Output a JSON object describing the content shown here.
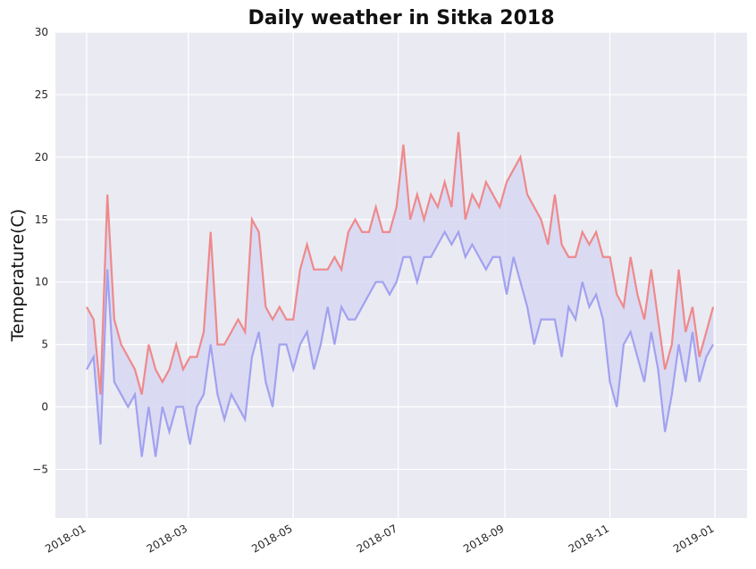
{
  "chart_data": {
    "type": "line",
    "title": "Daily weather in Sitka 2018",
    "ylabel": "Temperature(C)",
    "x": [
      0,
      4,
      8,
      12,
      16,
      20,
      24,
      28,
      32,
      36,
      40,
      44,
      48,
      52,
      56,
      60,
      64,
      68,
      72,
      76,
      80,
      84,
      88,
      92,
      96,
      100,
      104,
      108,
      112,
      116,
      120,
      124,
      128,
      132,
      136,
      140,
      144,
      148,
      152,
      156,
      160,
      164,
      168,
      172,
      176,
      180,
      184,
      188,
      192,
      196,
      200,
      204,
      208,
      212,
      216,
      220,
      224,
      228,
      232,
      236,
      240,
      244,
      248,
      252,
      256,
      260,
      264,
      268,
      272,
      276,
      280,
      284,
      288,
      292,
      296,
      300,
      304,
      308,
      312,
      316,
      320,
      324,
      328,
      332,
      336,
      340,
      344,
      348,
      352,
      356,
      360,
      364
    ],
    "series": [
      {
        "color": "#f08080",
        "values": [
          8,
          7,
          1,
          17,
          7,
          5,
          4,
          3,
          1,
          5,
          3,
          2,
          3,
          5,
          3,
          4,
          4,
          6,
          14,
          5,
          5,
          6,
          7,
          6,
          15,
          14,
          8,
          7,
          8,
          7,
          7,
          11,
          13,
          11,
          11,
          11,
          12,
          11,
          14,
          15,
          14,
          14,
          16,
          14,
          14,
          16,
          21,
          15,
          17,
          15,
          17,
          16,
          18,
          16,
          22,
          15,
          17,
          16,
          18,
          17,
          16,
          18,
          19,
          20,
          17,
          16,
          15,
          13,
          17,
          13,
          12,
          12,
          14,
          13,
          14,
          12,
          12,
          9,
          8,
          12,
          9,
          7,
          11,
          7,
          3,
          5,
          11,
          6,
          8,
          4,
          6,
          8
        ]
      },
      {
        "color": "#9a9af0",
        "values": [
          3,
          4,
          -3,
          11,
          2,
          1,
          0,
          1,
          -4,
          0,
          -4,
          0,
          -2,
          0,
          0,
          -3,
          0,
          1,
          5,
          1,
          -1,
          1,
          0,
          -1,
          4,
          6,
          2,
          0,
          5,
          5,
          3,
          5,
          6,
          3,
          5,
          8,
          5,
          8,
          7,
          7,
          8,
          9,
          10,
          10,
          9,
          10,
          12,
          12,
          10,
          12,
          12,
          13,
          14,
          13,
          14,
          12,
          13,
          12,
          11,
          12,
          12,
          9,
          12,
          10,
          8,
          5,
          7,
          7,
          7,
          4,
          8,
          7,
          10,
          8,
          9,
          7,
          2,
          0,
          5,
          6,
          4,
          2,
          6,
          3,
          -2,
          1,
          5,
          2,
          6,
          2,
          4,
          5
        ]
      }
    ],
    "fill_color": "#d6d6f2",
    "xlim": [
      -18.2,
      383.7
    ],
    "xticks": [
      {
        "value": 0,
        "label": "2018-01"
      },
      {
        "value": 59,
        "label": "2018-03"
      },
      {
        "value": 120,
        "label": "2018-05"
      },
      {
        "value": 181,
        "label": "2018-07"
      },
      {
        "value": 243,
        "label": "2018-09"
      },
      {
        "value": 304,
        "label": "2018-11"
      },
      {
        "value": 365,
        "label": "2019-01"
      }
    ],
    "ylim": [
      -8.9,
      30
    ],
    "yticks": [
      {
        "value": -5,
        "label": "−5"
      },
      0,
      5,
      10,
      15,
      20,
      25,
      30
    ],
    "grid": true
  }
}
